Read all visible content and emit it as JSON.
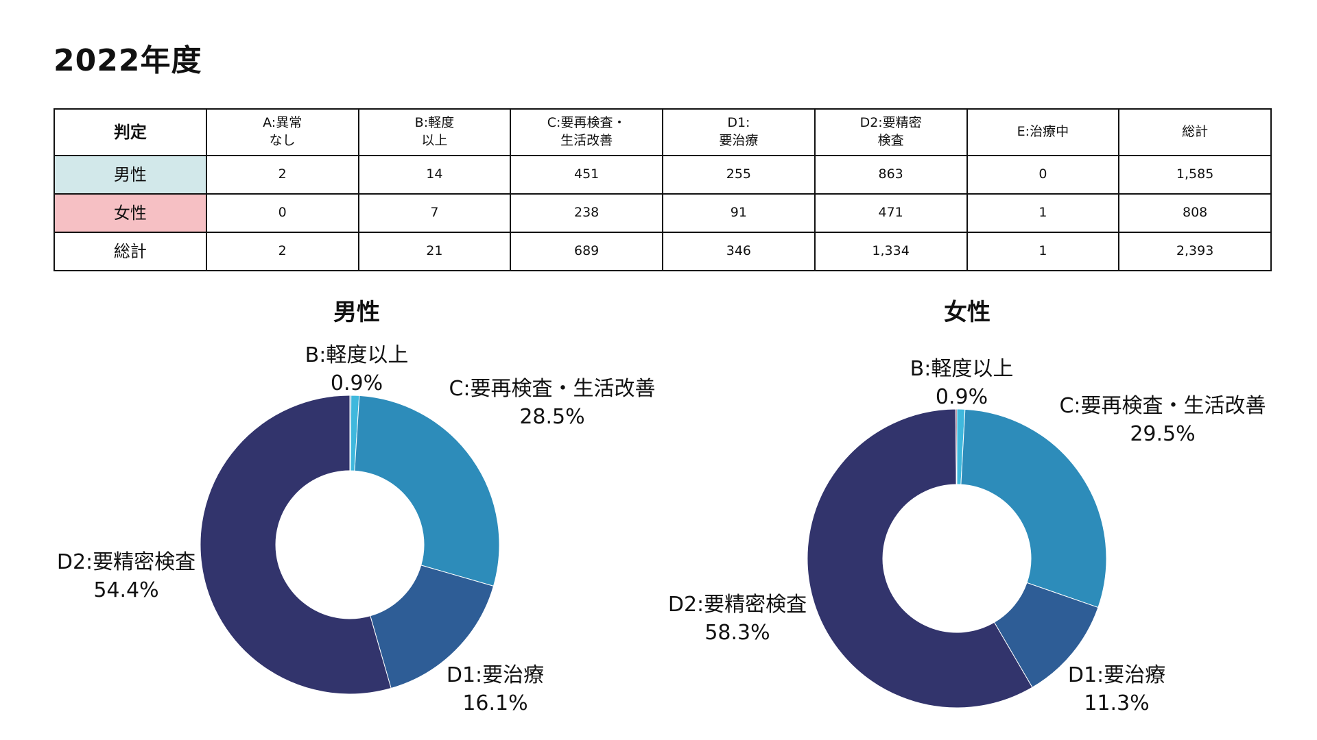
{
  "title": "2022年度",
  "table": {
    "corner": "判定",
    "columns": [
      [
        "A:異常",
        "なし"
      ],
      [
        "B:軽度",
        "以上"
      ],
      [
        "C:要再検査・",
        "生活改善"
      ],
      [
        "D1:",
        "要治療"
      ],
      [
        "D2:要精密",
        "検査"
      ],
      [
        "E:治療中"
      ],
      [
        "総計"
      ]
    ],
    "rows": [
      {
        "label": "男性",
        "bg": "#d2e8ea",
        "values": [
          "2",
          "14",
          "451",
          "255",
          "863",
          "0",
          "1,585"
        ]
      },
      {
        "label": "女性",
        "bg": "#f6c0c4",
        "values": [
          "0",
          "7",
          "238",
          "91",
          "471",
          "1",
          "808"
        ]
      },
      {
        "label": "総計",
        "bg": "#ffffff",
        "values": [
          "2",
          "21",
          "689",
          "346",
          "1,334",
          "1",
          "2,393"
        ]
      }
    ]
  },
  "colors": {
    "A:異常なし": "#2f7fb5",
    "B:軽度以上": "#3fb8dd",
    "C:要再検査・生活改善": "#2d8cba",
    "D1:要治療": "#2e5d96",
    "D2:要精密検査": "#32346c",
    "E:治療中": "#8e3a5a"
  },
  "chart_data": [
    {
      "type": "pie",
      "title": "男性",
      "labels": [
        "A:異常なし",
        "B:軽度以上",
        "C:要再検査・生活改善",
        "D1:要治療",
        "D2:要精密検査",
        "E:治療中"
      ],
      "values": [
        2,
        14,
        451,
        255,
        863,
        0
      ],
      "data_labels": [
        {
          "category": "B:軽度以上",
          "percent": "0.9%"
        },
        {
          "category": "C:要再検査・生活改善",
          "percent": "28.5%"
        },
        {
          "category": "D1:要治療",
          "percent": "16.1%"
        },
        {
          "category": "D2:要精密検査",
          "percent": "54.4%"
        }
      ]
    },
    {
      "type": "pie",
      "title": "女性",
      "labels": [
        "A:異常なし",
        "B:軽度以上",
        "C:要再検査・生活改善",
        "D1:要治療",
        "D2:要精密検査",
        "E:治療中"
      ],
      "values": [
        0,
        7,
        238,
        91,
        471,
        1
      ],
      "data_labels": [
        {
          "category": "B:軽度以上",
          "percent": "0.9%"
        },
        {
          "category": "C:要再検査・生活改善",
          "percent": "29.5%"
        },
        {
          "category": "D1:要治療",
          "percent": "11.3%"
        },
        {
          "category": "D2:要精密検査",
          "percent": "58.3%"
        }
      ]
    }
  ]
}
